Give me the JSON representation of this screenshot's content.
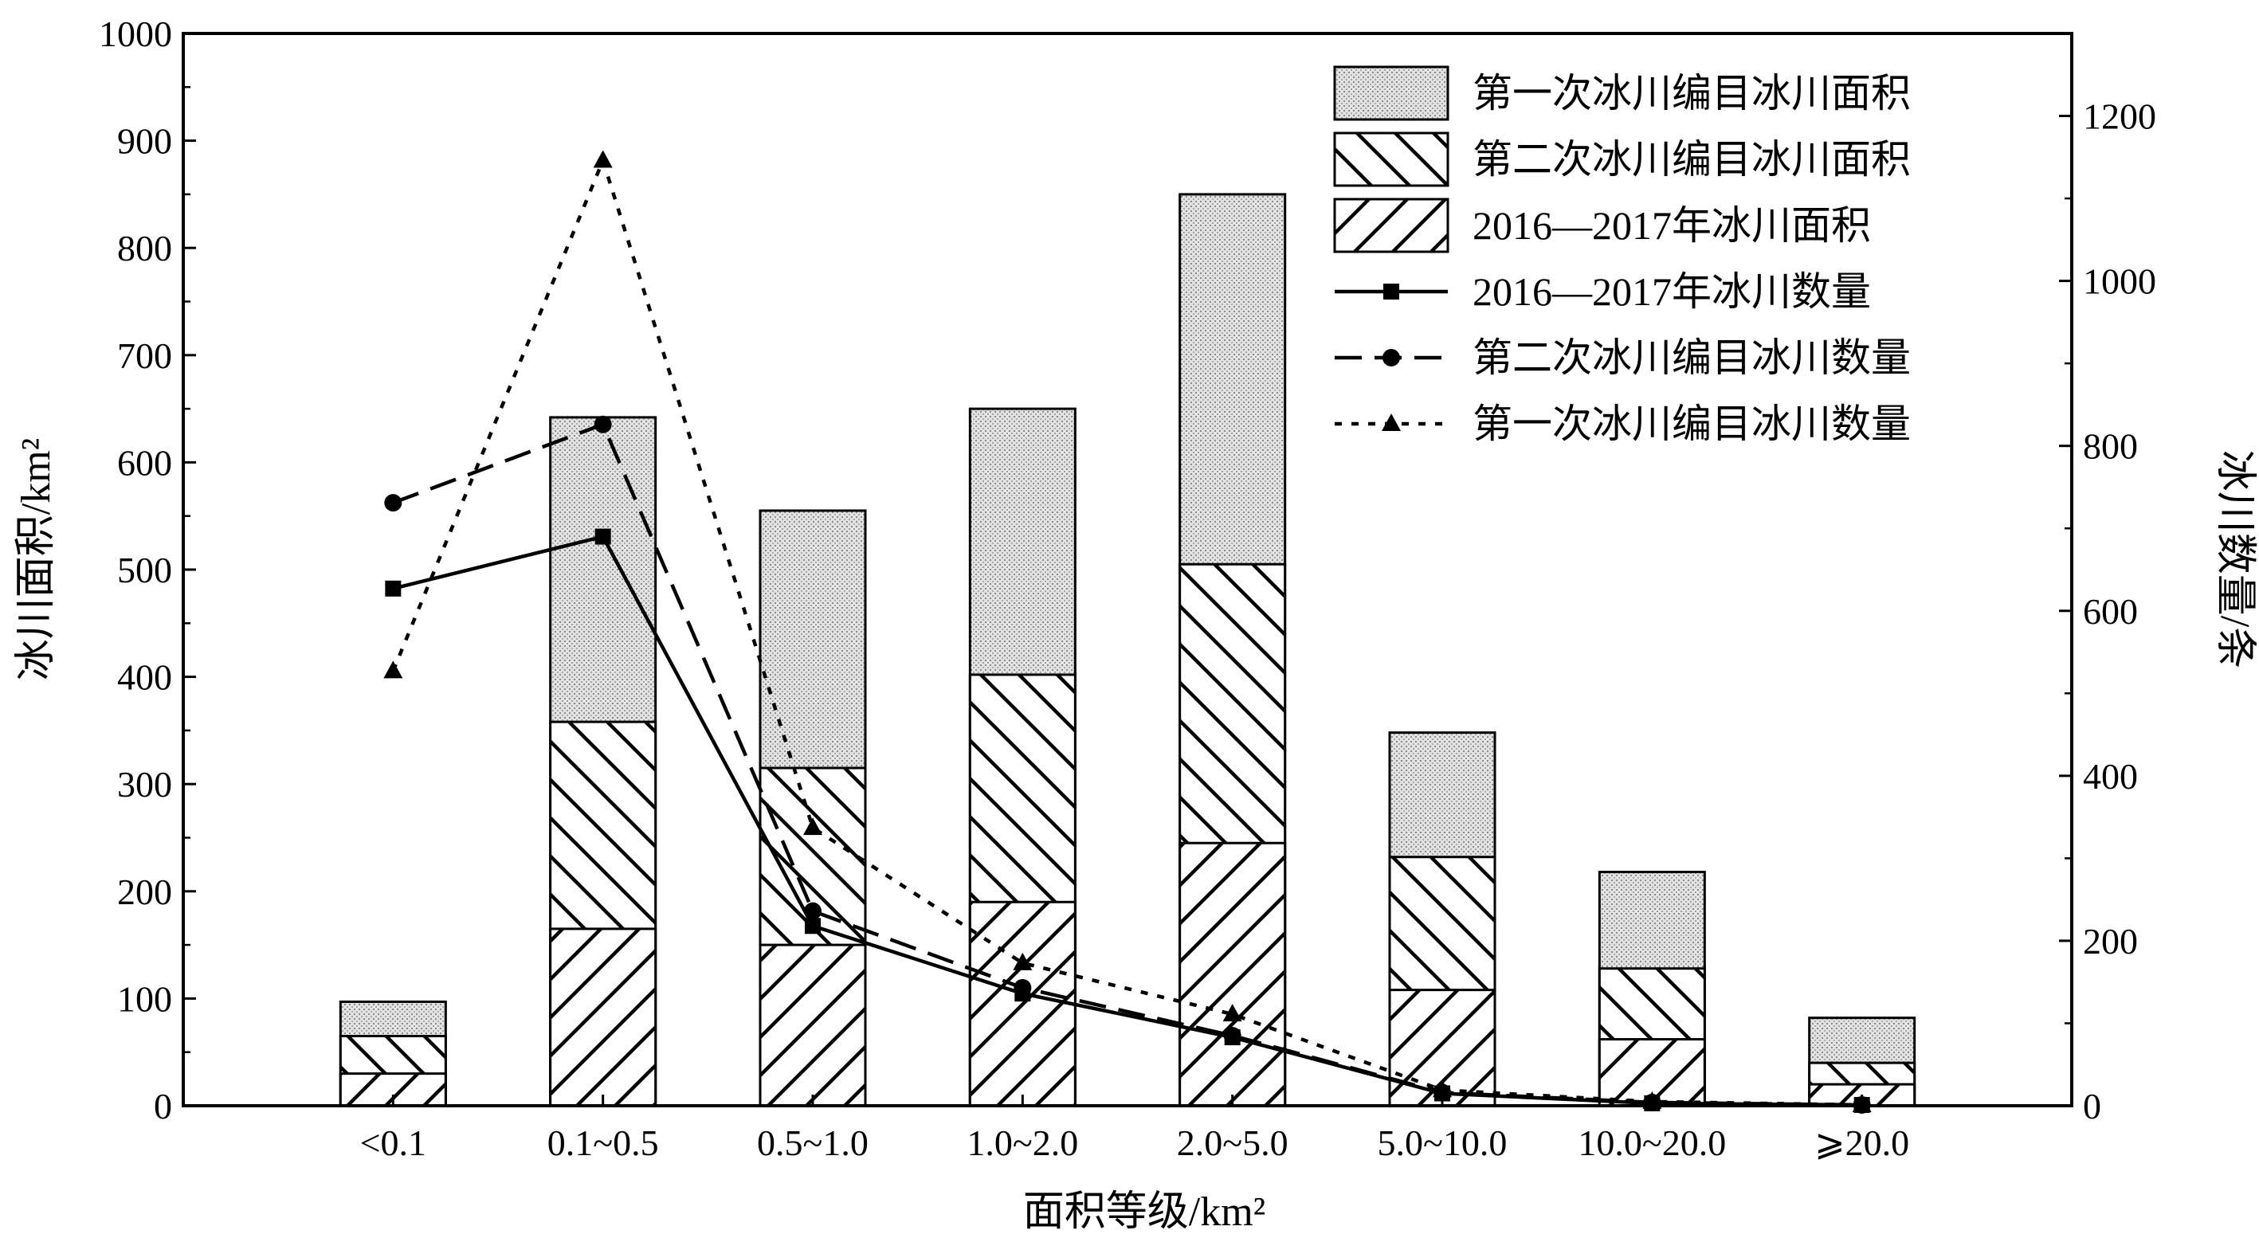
{
  "chart_data": {
    "type": "bar",
    "categories": [
      "<0.1",
      "0.1~0.5",
      "0.5~1.0",
      "1.0~2.0",
      "2.0~5.0",
      "5.0~10.0",
      "10.0~20.0",
      "⩾20.0"
    ],
    "xlabel": "面积等级/km²",
    "ylabel_left": "冰川面积/km²",
    "ylabel_right": "冰川数量/条",
    "ylim_left": [
      0,
      1000
    ],
    "ylim_right": [
      0,
      1300
    ],
    "yticks_left": [
      0,
      100,
      200,
      300,
      400,
      500,
      600,
      700,
      800,
      900,
      1000
    ],
    "yticks_right": [
      0,
      200,
      400,
      600,
      800,
      1000,
      1200
    ],
    "grid": false,
    "legend_position": "top-right",
    "bar_series": [
      {
        "name": "第一次冰川编目冰川面积",
        "pattern": "dots",
        "values": [
          97,
          642,
          555,
          650,
          850,
          348,
          218,
          82
        ]
      },
      {
        "name": "第二次冰川编目冰川面积",
        "pattern": "backslash",
        "values": [
          65,
          358,
          315,
          402,
          505,
          232,
          128,
          40
        ]
      },
      {
        "name": "2016—2017年冰川面积",
        "pattern": "slash",
        "values": [
          30,
          165,
          150,
          190,
          245,
          108,
          62,
          20
        ]
      }
    ],
    "line_series": [
      {
        "name": "2016—2017年冰川数量",
        "axis": "right",
        "marker": "square",
        "dash": "solid",
        "values": [
          627,
          690,
          218,
          136,
          83,
          15,
          3,
          1
        ]
      },
      {
        "name": "第二次冰川编目冰川数量",
        "axis": "right",
        "marker": "circle",
        "dash": "dashed",
        "values": [
          731,
          826,
          236,
          143,
          85,
          16,
          4,
          1
        ]
      },
      {
        "name": "第一次冰川编目冰川数量",
        "axis": "right",
        "marker": "triangle",
        "dash": "dotted",
        "values": [
          527,
          1146,
          337,
          173,
          111,
          19,
          5,
          1
        ]
      }
    ]
  }
}
